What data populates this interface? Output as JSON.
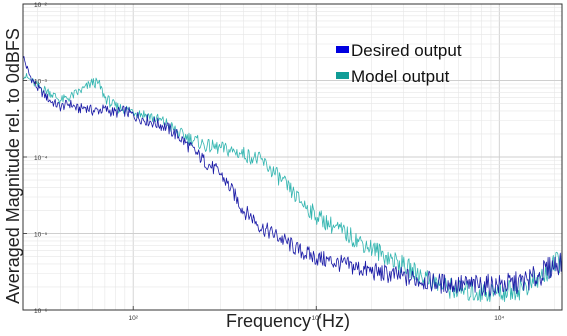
{
  "chart_data": {
    "type": "line",
    "xlabel": "Frequency (Hz)",
    "ylabel": "Averaged Magnitude rel. to 0dBFS",
    "x_scale": "log",
    "y_scale": "log",
    "xlim": [
      25,
      22000
    ],
    "ylim": [
      1e-06,
      0.01
    ],
    "grid": true,
    "legend_position": "top-right",
    "x_ticks": [
      {
        "value": 100,
        "label": "10²"
      },
      {
        "value": 1000,
        "label": "10³"
      },
      {
        "value": 10000,
        "label": "10⁴"
      }
    ],
    "y_ticks": [
      {
        "value": 1e-06,
        "label": "10⁻⁶"
      },
      {
        "value": 1e-05,
        "label": "10⁻⁵"
      },
      {
        "value": 0.0001,
        "label": "10⁻⁴"
      },
      {
        "value": 0.001,
        "label": "10⁻³"
      },
      {
        "value": 0.01,
        "label": "10⁻²"
      }
    ],
    "series": [
      {
        "name": "Desired output",
        "color": "#1a1aa6",
        "legend_color": "#0000e0",
        "points": [
          [
            25,
            0.0021
          ],
          [
            27,
            0.0012
          ],
          [
            30,
            0.0008
          ],
          [
            35,
            0.00055
          ],
          [
            40,
            0.00045
          ],
          [
            45,
            0.0005
          ],
          [
            50,
            0.00042
          ],
          [
            55,
            0.00045
          ],
          [
            60,
            0.0004
          ],
          [
            70,
            0.00042
          ],
          [
            80,
            0.00038
          ],
          [
            90,
            0.0004
          ],
          [
            100,
            0.00035
          ],
          [
            120,
            0.0003
          ],
          [
            150,
            0.00025
          ],
          [
            180,
            0.00018
          ],
          [
            200,
            0.00014
          ],
          [
            250,
            8.5e-05
          ],
          [
            300,
            6e-05
          ],
          [
            350,
            3.5e-05
          ],
          [
            400,
            2e-05
          ],
          [
            450,
            1.6e-05
          ],
          [
            500,
            1.2e-05
          ],
          [
            600,
            9.5e-06
          ],
          [
            700,
            7.5e-06
          ],
          [
            800,
            6e-06
          ],
          [
            1000,
            4.8e-06
          ],
          [
            1500,
            3.8e-06
          ],
          [
            2000,
            3.2e-06
          ],
          [
            3000,
            2.7e-06
          ],
          [
            4000,
            2.4e-06
          ],
          [
            5000,
            2.2e-06
          ],
          [
            7000,
            2.1e-06
          ],
          [
            10000,
            2.1e-06
          ],
          [
            13000,
            2.3e-06
          ],
          [
            16000,
            2.7e-06
          ],
          [
            19000,
            3.6e-06
          ],
          [
            22000,
            4.4e-06
          ]
        ]
      },
      {
        "name": "Model output",
        "color": "#33b5b0",
        "legend_color": "#109c96",
        "points": [
          [
            25,
            0.0012
          ],
          [
            30,
            0.00085
          ],
          [
            35,
            0.0007
          ],
          [
            40,
            0.00055
          ],
          [
            45,
            0.0006
          ],
          [
            50,
            0.0007
          ],
          [
            55,
            0.0008
          ],
          [
            60,
            0.00095
          ],
          [
            65,
            0.0009
          ],
          [
            70,
            0.0006
          ],
          [
            80,
            0.00045
          ],
          [
            90,
            0.00042
          ],
          [
            100,
            0.0004
          ],
          [
            120,
            0.00035
          ],
          [
            150,
            0.00028
          ],
          [
            180,
            0.0002
          ],
          [
            200,
            0.00018
          ],
          [
            250,
            0.00014
          ],
          [
            300,
            0.00013
          ],
          [
            400,
            0.00011
          ],
          [
            500,
            9e-05
          ],
          [
            600,
            6e-05
          ],
          [
            700,
            4e-05
          ],
          [
            800,
            2.8e-05
          ],
          [
            1000,
            1.7e-05
          ],
          [
            1200,
            1.3e-05
          ],
          [
            1500,
            9.5e-06
          ],
          [
            2000,
            6.5e-06
          ],
          [
            3000,
            3.8e-06
          ],
          [
            4000,
            2.6e-06
          ],
          [
            5000,
            2e-06
          ],
          [
            7000,
            1.7e-06
          ],
          [
            10000,
            1.7e-06
          ],
          [
            13000,
            1.9e-06
          ],
          [
            16000,
            2.4e-06
          ],
          [
            19000,
            3.4e-06
          ],
          [
            22000,
            4.6e-06
          ]
        ]
      }
    ]
  }
}
